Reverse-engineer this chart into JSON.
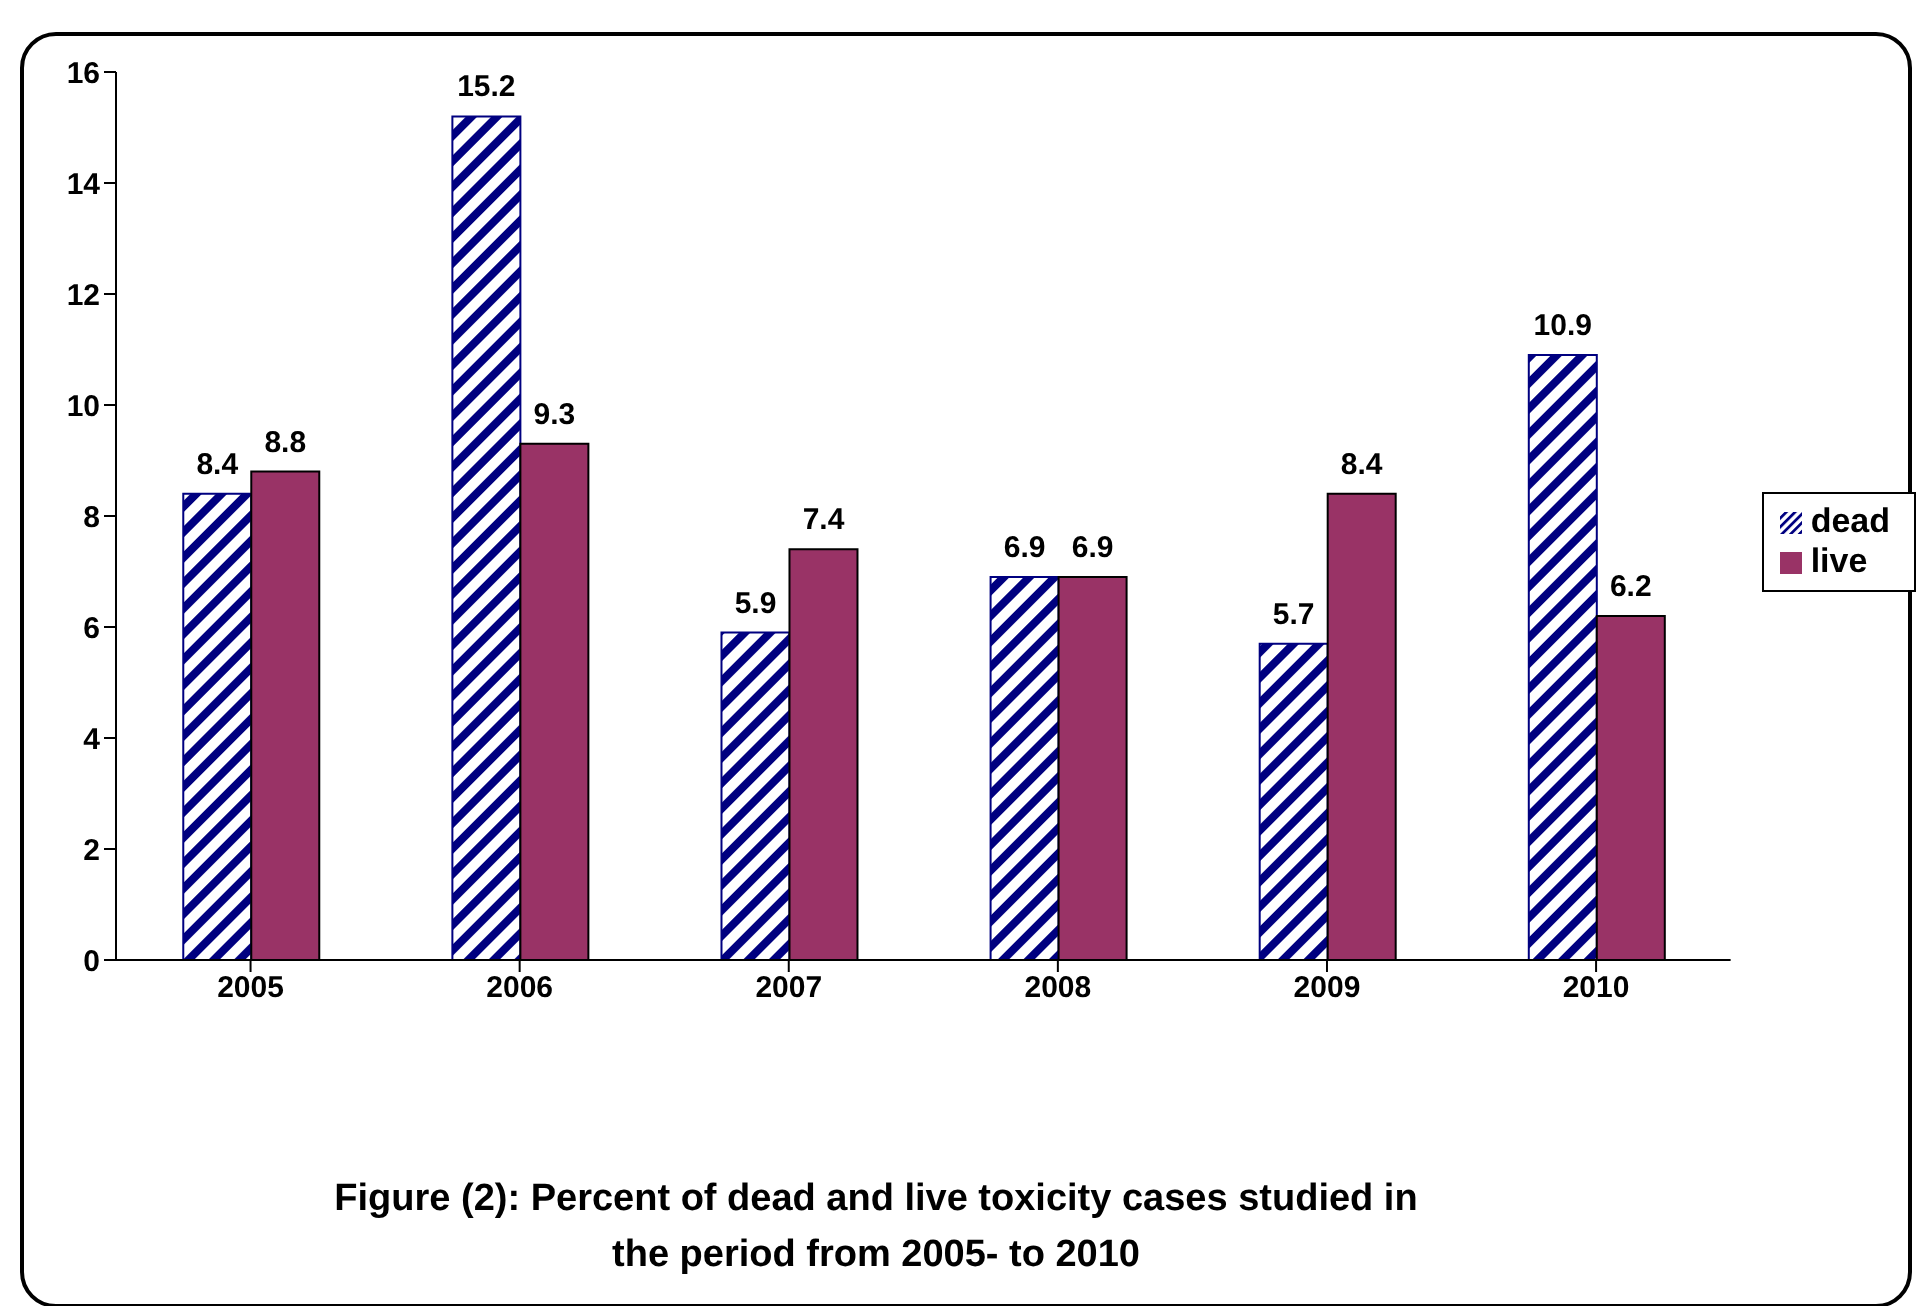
{
  "chart_data": {
    "type": "bar",
    "annotations": [
      "Figure (2): Percent of dead and live toxicity cases studied in the period from 2005- to 2010"
    ],
    "categories": [
      "2005",
      "2006",
      "2007",
      "2008",
      "2009",
      "2010"
    ],
    "series": [
      {
        "name": "dead",
        "color": "#000080",
        "values": [
          8.4,
          15.2,
          5.9,
          6.9,
          5.7,
          10.9
        ]
      },
      {
        "name": "live",
        "color": "#993366",
        "values": [
          8.8,
          9.3,
          7.4,
          6.9,
          8.4,
          6.2
        ]
      }
    ],
    "ylim": [
      0,
      16
    ],
    "yticks": [
      0,
      2,
      4,
      6,
      8,
      10,
      12,
      14,
      16
    ],
    "grid": false,
    "legend": "right",
    "data_labels": true
  }
}
